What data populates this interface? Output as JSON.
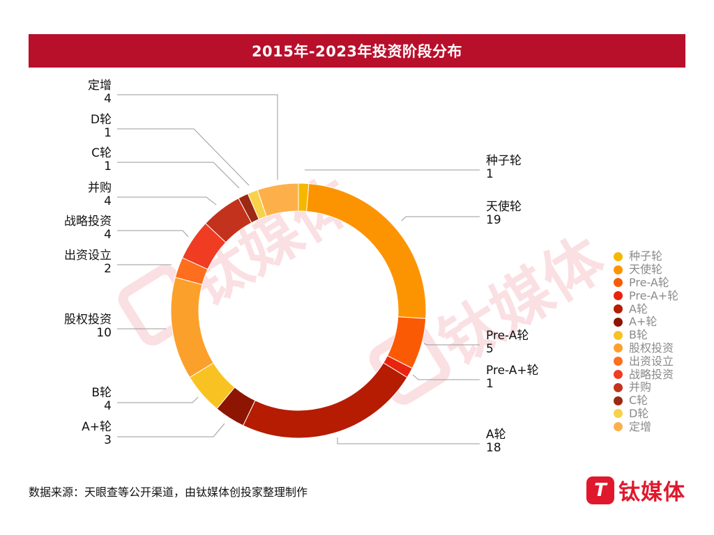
{
  "title": "2015年-2023年投资阶段分布",
  "source": "数据来源：天眼查等公开渠道，由钛媒体创投家整理制作",
  "brand": {
    "mark": "T",
    "text": "钛媒体"
  },
  "watermark": {
    "text": "钛媒体"
  },
  "chart_data": {
    "type": "pie",
    "variant": "donut",
    "title": "2015年-2023年投资阶段分布",
    "legend_position": "right",
    "slices": [
      {
        "label": "种子轮",
        "value": 1,
        "color": "#f5b800"
      },
      {
        "label": "天使轮",
        "value": 19,
        "color": "#fc9402"
      },
      {
        "label": "Pre-A轮",
        "value": 5,
        "color": "#fb5a05"
      },
      {
        "label": "Pre-A+轮",
        "value": 1,
        "color": "#e8240f"
      },
      {
        "label": "A轮",
        "value": 18,
        "color": "#b51c02"
      },
      {
        "label": "A+轮",
        "value": 3,
        "color": "#8d1502"
      },
      {
        "label": "B轮",
        "value": 4,
        "color": "#f9c223"
      },
      {
        "label": "股权投资",
        "value": 10,
        "color": "#fca02c"
      },
      {
        "label": "出资设立",
        "value": 2,
        "color": "#fd6e1e"
      },
      {
        "label": "战略投资",
        "value": 4,
        "color": "#ef3c23"
      },
      {
        "label": "并购",
        "value": 4,
        "color": "#c3321c"
      },
      {
        "label": "C轮",
        "value": 1,
        "color": "#9b2913"
      },
      {
        "label": "D轮",
        "value": 1,
        "color": "#f7d24a"
      },
      {
        "label": "定增",
        "value": 4,
        "color": "#fdb04a"
      }
    ]
  }
}
